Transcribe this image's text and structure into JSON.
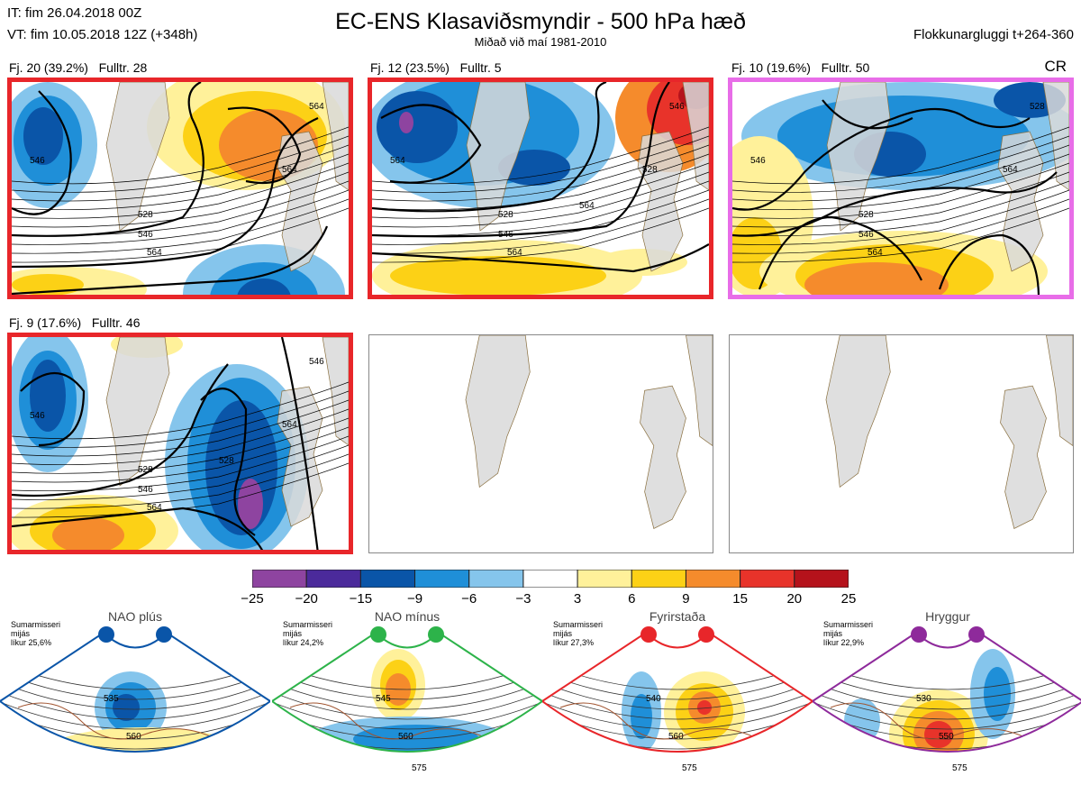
{
  "header": {
    "initial_time": "IT: fim 26.04.2018 00Z",
    "valid_time": "VT: fim 10.05.2018 12Z  (+348h)",
    "title": "EC-ENS Klasaviðsmyndir - 500 hPa hæð",
    "subtitle": "Miðað við maí 1981-2010",
    "window": "Flokkunargluggi t+264-360"
  },
  "panels": [
    {
      "label": "Fj. 20 (39.2%)",
      "rep": "Fulltr. 28",
      "border": "#e8262a",
      "regime": "",
      "contours": [
        "528",
        "546",
        "564",
        "546",
        "564",
        "564"
      ]
    },
    {
      "label": "Fj. 12 (23.5%)",
      "rep": "Fulltr. 5",
      "border": "#e8262a",
      "regime": "",
      "contours": [
        "528",
        "546",
        "564",
        "564",
        "528",
        "546",
        "564"
      ]
    },
    {
      "label": "Fj. 10 (19.6%)",
      "rep": "Fulltr. 50",
      "border": "#e86de8",
      "regime": "CR",
      "contours": [
        "528",
        "546",
        "564",
        "546",
        "564",
        "528"
      ]
    },
    {
      "label": "Fj. 9 (17.6%)",
      "rep": "Fulltr. 46",
      "border": "#e8262a",
      "regime": "",
      "contours": [
        "528",
        "546",
        "564",
        "546",
        "564",
        "546",
        "528"
      ]
    }
  ],
  "colorbar": {
    "ticks": [
      "−25",
      "−20",
      "−15",
      "−9",
      "−6",
      "−3",
      "3",
      "6",
      "9",
      "15",
      "20",
      "25"
    ],
    "colors": [
      "#8e44a0",
      "#4b2a9b",
      "#0a55a8",
      "#1f8fd8",
      "#85c5ec",
      "#ffffff",
      "#fff19a",
      "#fcd116",
      "#f58b2c",
      "#e8332a",
      "#b5121b"
    ]
  },
  "regimes": [
    {
      "name": "NAO plús",
      "note": [
        "Sumarmisseri",
        "mijás",
        "líkur 25,6%"
      ],
      "color": "#0a55a8",
      "labels": [
        "535",
        "560"
      ]
    },
    {
      "name": "NAO mínus",
      "note": [
        "Sumarmisseri",
        "mijás",
        "líkur 24,2%"
      ],
      "color": "#2db34a",
      "labels": [
        "545",
        "560",
        "575"
      ]
    },
    {
      "name": "Fyrirstaða",
      "note": [
        "Sumarmisseri",
        "mijás",
        "líkur 27,3%"
      ],
      "color": "#e8262a",
      "labels": [
        "540",
        "560",
        "575"
      ]
    },
    {
      "name": "Hryggur",
      "note": [
        "Sumarmisseri",
        "mijás",
        "líkur 22,9%"
      ],
      "color": "#8e2a9b",
      "labels": [
        "530",
        "550",
        "575"
      ]
    }
  ]
}
